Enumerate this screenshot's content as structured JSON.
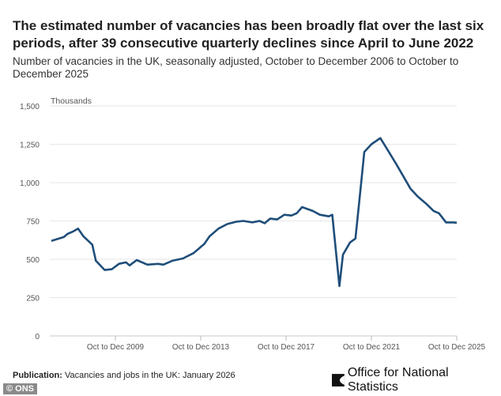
{
  "header": {
    "title": "The estimated number of vacancies has been broadly flat over the last six periods, after 39 consecutive quarterly declines since April to June 2022",
    "subtitle": "Number of vacancies in the UK, seasonally adjusted, October to December 2006 to October to December 2025"
  },
  "footer": {
    "publication_label": "Publication:",
    "publication_text": "Vacancies and jobs in the UK: January 2026",
    "logo_text": "Office for National Statistics",
    "copyright": "© ONS"
  },
  "chart_data": {
    "type": "line",
    "title": "",
    "xlabel": "",
    "ylabel": "Thousands",
    "ylim": [
      0,
      1500
    ],
    "xlim": [
      "2006-11",
      "2025-11"
    ],
    "yticks": [
      0,
      250,
      500,
      750,
      1000,
      1250,
      1500
    ],
    "ytick_labels": [
      "0",
      "250",
      "500",
      "750",
      "1,000",
      "1,250",
      "1,500"
    ],
    "xticks": [
      {
        "date": "2009-11",
        "label": "Oct to Dec 2009"
      },
      {
        "date": "2013-11",
        "label": "Oct to Dec 2013"
      },
      {
        "date": "2017-11",
        "label": "Oct to Dec 2017"
      },
      {
        "date": "2021-11",
        "label": "Oct to Dec 2021"
      },
      {
        "date": "2025-11",
        "label": "Oct to Dec 2025"
      }
    ],
    "grid": "horizontal",
    "line_color": "#1f4e7a",
    "series": [
      {
        "points": [
          [
            "2006-11",
            620
          ],
          [
            "2007-06",
            645
          ],
          [
            "2007-08",
            665
          ],
          [
            "2007-11",
            680
          ],
          [
            "2008-02",
            700
          ],
          [
            "2008-05",
            650
          ],
          [
            "2008-10",
            595
          ],
          [
            "2008-12",
            490
          ],
          [
            "2009-05",
            430
          ],
          [
            "2009-09",
            435
          ],
          [
            "2010-01",
            470
          ],
          [
            "2010-05",
            480
          ],
          [
            "2010-07",
            460
          ],
          [
            "2010-11",
            495
          ],
          [
            "2011-05",
            465
          ],
          [
            "2011-11",
            470
          ],
          [
            "2012-02",
            465
          ],
          [
            "2012-07",
            490
          ],
          [
            "2013-01",
            505
          ],
          [
            "2013-07",
            540
          ],
          [
            "2014-01",
            600
          ],
          [
            "2014-04",
            650
          ],
          [
            "2014-09",
            700
          ],
          [
            "2015-02",
            730
          ],
          [
            "2015-07",
            745
          ],
          [
            "2015-11",
            750
          ],
          [
            "2016-04",
            740
          ],
          [
            "2016-08",
            750
          ],
          [
            "2016-11",
            735
          ],
          [
            "2017-02",
            765
          ],
          [
            "2017-06",
            760
          ],
          [
            "2017-10",
            790
          ],
          [
            "2018-02",
            785
          ],
          [
            "2018-05",
            800
          ],
          [
            "2018-08",
            840
          ],
          [
            "2019-02",
            815
          ],
          [
            "2019-06",
            790
          ],
          [
            "2019-11",
            780
          ],
          [
            "2020-01",
            790
          ],
          [
            "2020-05",
            325
          ],
          [
            "2020-07",
            530
          ],
          [
            "2020-11",
            610
          ],
          [
            "2021-02",
            635
          ],
          [
            "2021-05",
            970
          ],
          [
            "2021-07",
            1200
          ],
          [
            "2021-11",
            1250
          ],
          [
            "2022-04",
            1290
          ],
          [
            "2022-08",
            1215
          ],
          [
            "2023-01",
            1120
          ],
          [
            "2023-05",
            1040
          ],
          [
            "2023-09",
            960
          ],
          [
            "2024-01",
            910
          ],
          [
            "2024-06",
            860
          ],
          [
            "2024-10",
            815
          ],
          [
            "2025-01",
            800
          ],
          [
            "2025-05",
            740
          ],
          [
            "2025-09",
            740
          ],
          [
            "2025-11",
            738
          ]
        ]
      }
    ]
  }
}
